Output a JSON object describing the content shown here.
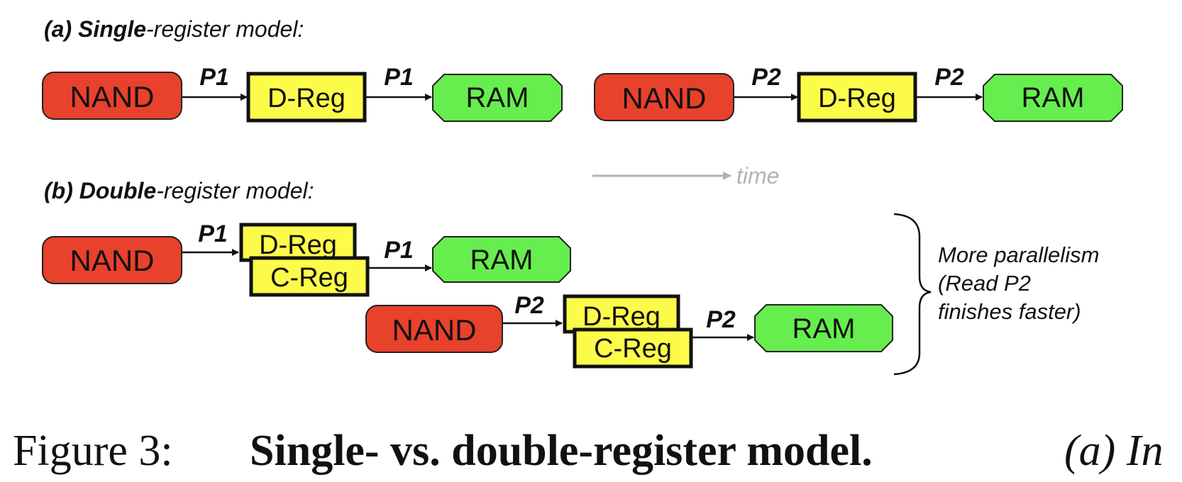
{
  "section_a": {
    "label_prefix": "(a) ",
    "label_bold": "Single",
    "label_rest": "-register model:"
  },
  "section_b": {
    "label_prefix": "(b) ",
    "label_bold": "Double",
    "label_rest": "-register model:"
  },
  "blocks": {
    "nand": "NAND",
    "dreg": "D-Reg",
    "creg": "C-Reg",
    "ram": "RAM"
  },
  "requests": {
    "p1": "P1",
    "p2": "P2"
  },
  "time_label": "time",
  "note": {
    "line1": "More parallelism",
    "line2": "(Read P2",
    "line3": "finishes faster)"
  },
  "caption": {
    "figure": "Figure 3:",
    "title": "Single- vs. double-register model.",
    "trailing": "(a) In"
  },
  "colors": {
    "nand": "#e8412c",
    "register": "#fdfb4a",
    "ram": "#66ee4e",
    "time_arrow": "#b3b3b3"
  }
}
